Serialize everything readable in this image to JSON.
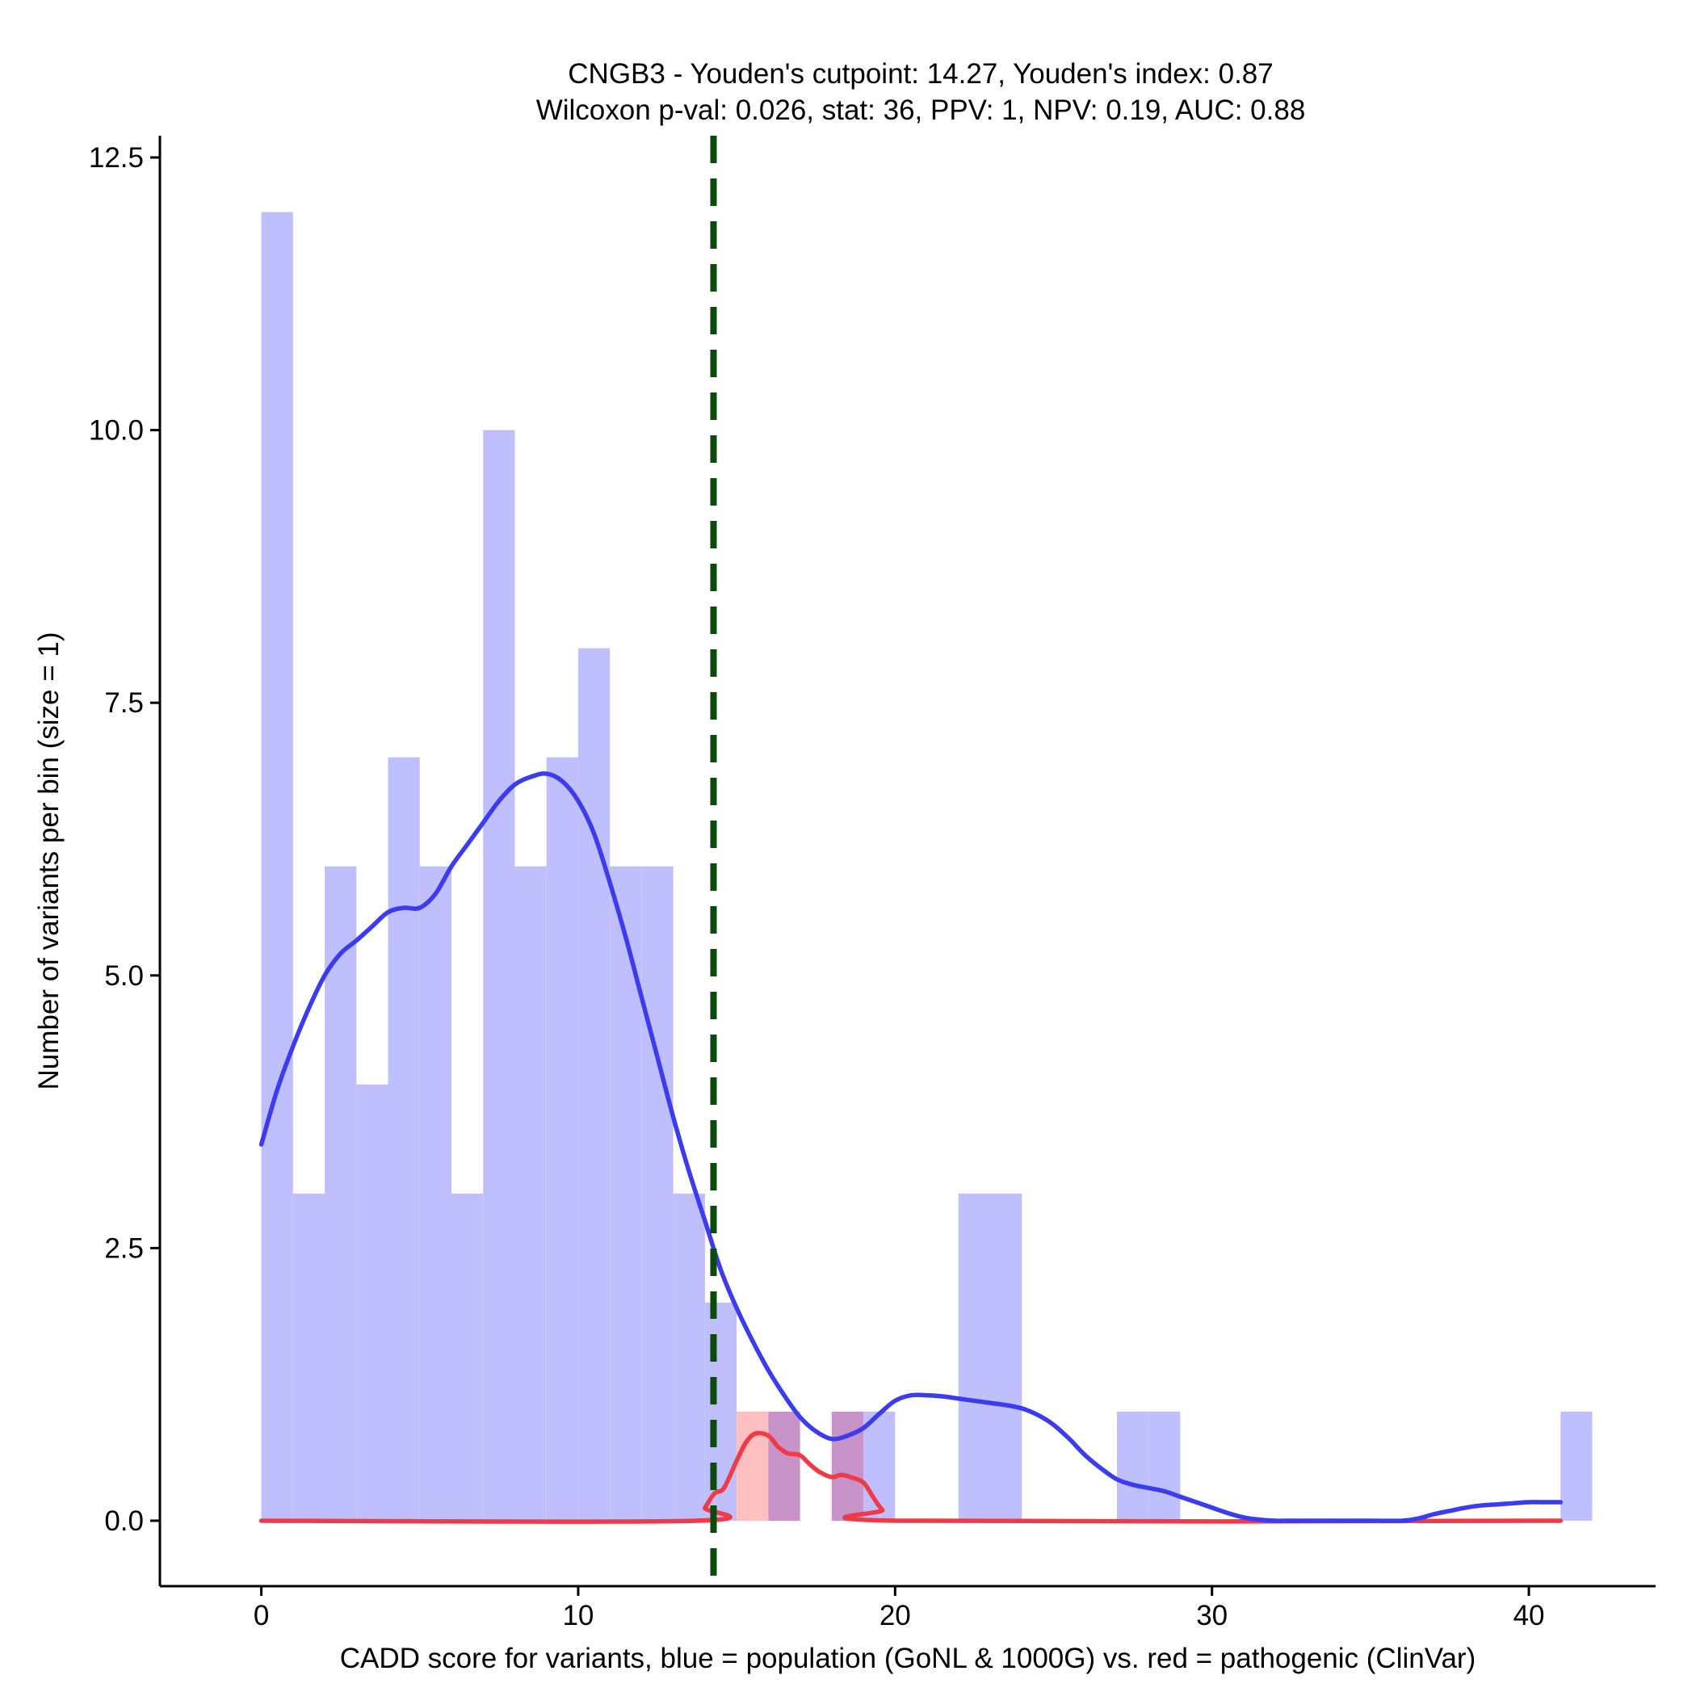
{
  "chart_data": {
    "type": "bar",
    "title_line1": "CNGB3 - Youden's cutpoint: 14.27, Youden's index: 0.87",
    "title_line2": "Wilcoxon p-val: 0.026, stat: 36, PPV: 1, NPV: 0.19, AUC: 0.88",
    "xlabel": "CADD score for variants, blue = population (GoNL & 1000G) vs. red = pathogenic (ClinVar)",
    "ylabel": "Number of variants per bin (size = 1)",
    "xlim": [
      -3.2,
      44.0
    ],
    "ylim": [
      -0.6,
      12.7
    ],
    "x_ticks": [
      0,
      10,
      20,
      30,
      40
    ],
    "x_tick_labels": [
      "0",
      "10",
      "20",
      "30",
      "40"
    ],
    "y_ticks": [
      0,
      2.5,
      5,
      7.5,
      10,
      12.5
    ],
    "y_tick_labels": [
      "0.0",
      "2.5",
      "5.0",
      "7.5",
      "10.0",
      "12.5"
    ],
    "bin_size": 1,
    "cutpoint": 14.27,
    "colors": {
      "population_bar": "#bfbffd",
      "pathogenic_bar": "#fdbfbf",
      "overlap_bar": "#c893c8",
      "population_line": "#3b3bef",
      "pathogenic_line": "#ef3b47",
      "cutpoint_line": "#0a4a0a"
    },
    "series": [
      {
        "name": "population (GoNL & 1000G)",
        "bins": [
          {
            "x0": 0,
            "x1": 1,
            "count": 12
          },
          {
            "x0": 1,
            "x1": 2,
            "count": 3
          },
          {
            "x0": 2,
            "x1": 3,
            "count": 6
          },
          {
            "x0": 3,
            "x1": 4,
            "count": 4
          },
          {
            "x0": 4,
            "x1": 5,
            "count": 7
          },
          {
            "x0": 5,
            "x1": 6,
            "count": 6
          },
          {
            "x0": 6,
            "x1": 7,
            "count": 3
          },
          {
            "x0": 7,
            "x1": 8,
            "count": 10
          },
          {
            "x0": 8,
            "x1": 9,
            "count": 6
          },
          {
            "x0": 9,
            "x1": 10,
            "count": 7
          },
          {
            "x0": 10,
            "x1": 11,
            "count": 8
          },
          {
            "x0": 11,
            "x1": 12,
            "count": 6
          },
          {
            "x0": 12,
            "x1": 13,
            "count": 6
          },
          {
            "x0": 13,
            "x1": 14,
            "count": 3
          },
          {
            "x0": 14,
            "x1": 15,
            "count": 2
          },
          {
            "x0": 16,
            "x1": 17,
            "count": 1
          },
          {
            "x0": 18,
            "x1": 19,
            "count": 1
          },
          {
            "x0": 19,
            "x1": 20,
            "count": 1
          },
          {
            "x0": 22,
            "x1": 23,
            "count": 3
          },
          {
            "x0": 23,
            "x1": 24,
            "count": 3
          },
          {
            "x0": 27,
            "x1": 28,
            "count": 1
          },
          {
            "x0": 28,
            "x1": 29,
            "count": 1
          },
          {
            "x0": 41,
            "x1": 42,
            "count": 1
          }
        ],
        "density_curve": {
          "x": [
            0,
            0.5,
            1,
            1.5,
            2,
            2.5,
            3,
            3.5,
            4,
            4.5,
            5,
            5.5,
            6,
            6.5,
            7,
            7.5,
            8,
            8.5,
            9,
            9.5,
            10,
            10.5,
            11,
            11.5,
            12,
            12.5,
            13,
            13.5,
            14,
            14.5,
            15,
            15.5,
            16,
            16.5,
            17,
            17.5,
            18,
            18.5,
            19,
            19.5,
            20,
            20.5,
            21,
            21.5,
            22,
            22.5,
            23,
            23.5,
            24,
            24.5,
            25,
            25.5,
            26,
            26.5,
            27,
            27.5,
            28,
            28.5,
            29,
            29.5,
            30,
            30.5,
            31,
            31.5,
            32,
            32.5,
            33,
            34,
            35,
            36,
            36.5,
            37,
            37.5,
            38,
            38.5,
            39,
            39.5,
            40,
            40.5,
            41
          ],
          "y": [
            3.45,
            3.95,
            4.35,
            4.7,
            5.0,
            5.2,
            5.32,
            5.45,
            5.58,
            5.62,
            5.62,
            5.75,
            6.0,
            6.2,
            6.4,
            6.6,
            6.75,
            6.82,
            6.85,
            6.78,
            6.6,
            6.3,
            5.85,
            5.35,
            4.8,
            4.25,
            3.7,
            3.2,
            2.75,
            2.3,
            1.95,
            1.65,
            1.38,
            1.15,
            0.95,
            0.82,
            0.75,
            0.78,
            0.85,
            0.98,
            1.1,
            1.15,
            1.15,
            1.14,
            1.12,
            1.1,
            1.08,
            1.06,
            1.03,
            0.97,
            0.88,
            0.75,
            0.6,
            0.48,
            0.38,
            0.33,
            0.3,
            0.27,
            0.22,
            0.17,
            0.12,
            0.07,
            0.03,
            0.01,
            0.0,
            0.0,
            0.0,
            0.0,
            0.0,
            0.0,
            0.02,
            0.06,
            0.09,
            0.12,
            0.14,
            0.15,
            0.16,
            0.17,
            0.17,
            0.17
          ]
        }
      },
      {
        "name": "pathogenic (ClinVar)",
        "bins": [
          {
            "x0": 15,
            "x1": 16,
            "count": 1
          },
          {
            "x0": 16,
            "x1": 17,
            "count": 1
          },
          {
            "x0": 18,
            "x1": 19,
            "count": 1
          }
        ],
        "density_curve": {
          "x": [
            0,
            13.7,
            14,
            14.3,
            14.6,
            15,
            15.3,
            15.6,
            16,
            16.3,
            16.6,
            17,
            17.3,
            17.6,
            18,
            18.3,
            18.6,
            19,
            19.3,
            19.6,
            20.1,
            41
          ],
          "y": [
            0,
            0,
            0.12,
            0.25,
            0.3,
            0.55,
            0.72,
            0.8,
            0.78,
            0.68,
            0.62,
            0.6,
            0.52,
            0.45,
            0.4,
            0.42,
            0.4,
            0.35,
            0.22,
            0.1,
            0,
            0
          ]
        }
      }
    ]
  }
}
